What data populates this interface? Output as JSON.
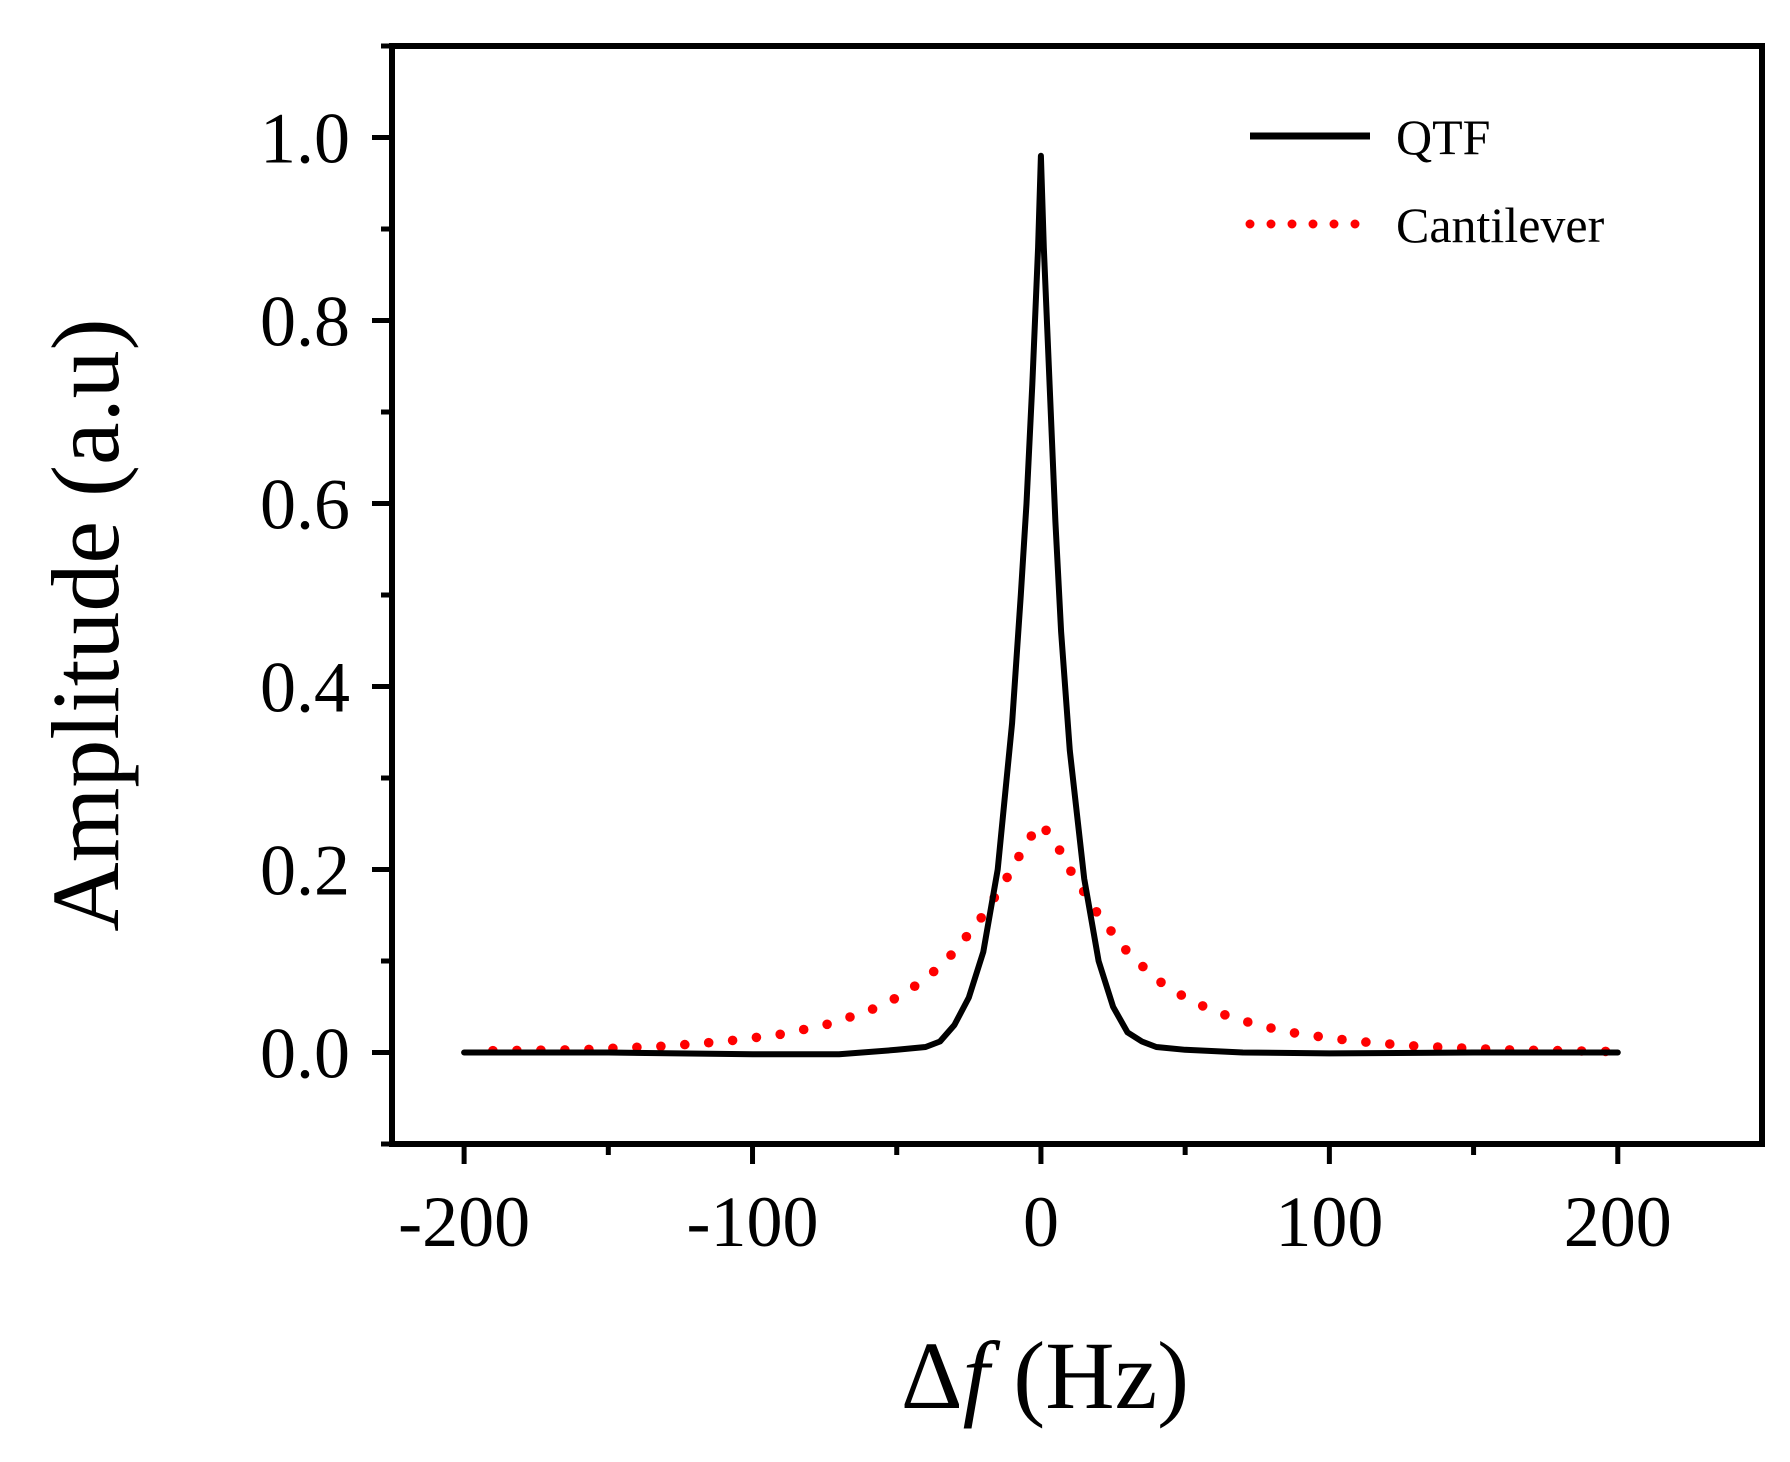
{
  "chart_data": {
    "type": "line",
    "title": "",
    "xlabel": {
      "prefix": "Δ",
      "italic": "f",
      "suffix": " (Hz)"
    },
    "ylabel": "Amplitude (a.u)",
    "xlim": [
      -225,
      250
    ],
    "ylim": [
      -0.1,
      1.1
    ],
    "xticks": [
      -200,
      -100,
      0,
      100,
      200
    ],
    "xtick_labels": [
      "-200",
      "-100",
      "0",
      "100",
      "200"
    ],
    "yticks": [
      0.0,
      0.2,
      0.4,
      0.6,
      0.8,
      1.0
    ],
    "ytick_labels": [
      "0.0",
      "0.2",
      "0.4",
      "0.6",
      "0.8",
      "1.0"
    ],
    "grid": false,
    "legend_position": "top-right",
    "series": [
      {
        "name": "QTF",
        "style": "solid",
        "color": "#000000",
        "x": [
          -200,
          -150,
          -100,
          -70,
          -50,
          -40,
          -35,
          -30,
          -25,
          -20,
          -15,
          -10,
          -7,
          -5,
          -3,
          -1,
          0,
          1,
          3,
          5,
          7,
          10,
          15,
          20,
          25,
          30,
          35,
          40,
          50,
          70,
          100,
          150,
          200
        ],
        "values": [
          0.0,
          0.0,
          -0.002,
          -0.002,
          0.003,
          0.006,
          0.012,
          0.03,
          0.06,
          0.11,
          0.2,
          0.36,
          0.5,
          0.6,
          0.73,
          0.88,
          0.98,
          0.88,
          0.73,
          0.58,
          0.46,
          0.33,
          0.19,
          0.1,
          0.05,
          0.022,
          0.012,
          0.006,
          0.003,
          0.0,
          -0.001,
          0.0,
          0.0
        ]
      },
      {
        "name": "Cantilever",
        "style": "dotted",
        "color": "#ff0000",
        "x": [
          -190,
          -160,
          -130,
          -110,
          -90,
          -75,
          -60,
          -50,
          -40,
          -30,
          -20,
          -15,
          -10,
          -5,
          0,
          5,
          10,
          15,
          20,
          30,
          40,
          50,
          60,
          75,
          90,
          110,
          130,
          160,
          200
        ],
        "values": [
          0.002,
          0.003,
          0.007,
          0.012,
          0.02,
          0.03,
          0.045,
          0.06,
          0.08,
          0.11,
          0.15,
          0.175,
          0.2,
          0.23,
          0.25,
          0.23,
          0.2,
          0.175,
          0.15,
          0.11,
          0.08,
          0.06,
          0.045,
          0.03,
          0.02,
          0.012,
          0.007,
          0.003,
          0.001
        ]
      }
    ]
  }
}
